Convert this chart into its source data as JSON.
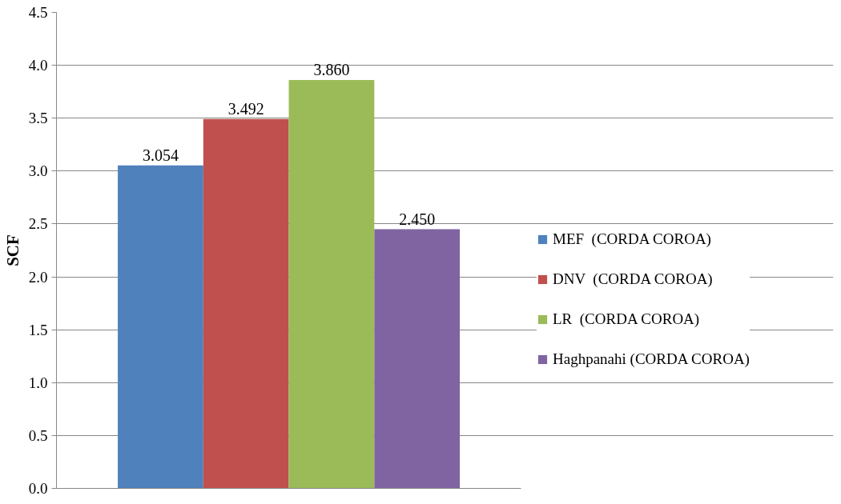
{
  "chart_data": {
    "type": "bar",
    "ylabel": "SCF",
    "categories": [
      null
    ],
    "series": [
      {
        "name": "MEF  (CORDA COROA)",
        "color": "#4f81bd",
        "values": [
          3.054
        ],
        "value_labels": [
          "3.054"
        ]
      },
      {
        "name": "DNV  (CORDA COROA)",
        "color": "#c0504d",
        "values": [
          3.492
        ],
        "value_labels": [
          "3.492"
        ]
      },
      {
        "name": "LR  (CORDA COROA)",
        "color": "#9bbb59",
        "values": [
          3.86
        ],
        "value_labels": [
          "3.860"
        ]
      },
      {
        "name": "Haghpanahi (CORDA COROA)",
        "color": "#8064a2",
        "values": [
          2.45
        ],
        "value_labels": [
          "2.450"
        ]
      }
    ],
    "ylim": [
      0,
      4.5
    ],
    "yticks": [
      {
        "value": 0,
        "label": "0.0"
      },
      {
        "value": 0.5,
        "label": "0.5"
      },
      {
        "value": 1,
        "label": "1.0"
      },
      {
        "value": 1.5,
        "label": "1.5"
      },
      {
        "value": 2,
        "label": "2.0"
      },
      {
        "value": 2.5,
        "label": "2.5"
      },
      {
        "value": 3,
        "label": "3.0"
      },
      {
        "value": 3.5,
        "label": "3.5"
      },
      {
        "value": 4,
        "label": "4.0"
      },
      {
        "value": 4.5,
        "label": "4.5"
      }
    ],
    "grid": "y",
    "legend": "right"
  }
}
